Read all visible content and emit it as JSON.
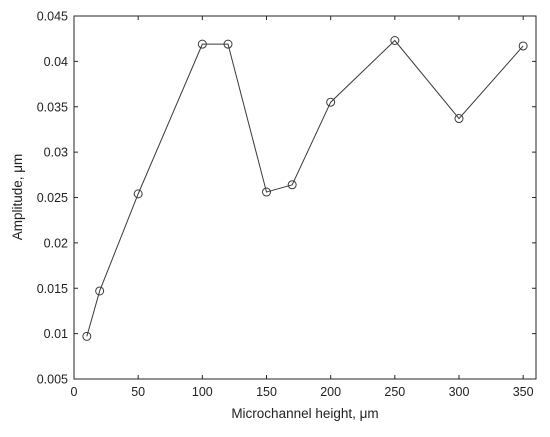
{
  "chart_data": {
    "type": "line",
    "title": "",
    "xlabel": "Microchannel height, μm",
    "ylabel": "Amplitude, μm",
    "xlim": [
      0,
      360
    ],
    "ylim": [
      0.005,
      0.045
    ],
    "xticks": [
      0,
      50,
      100,
      150,
      200,
      250,
      300,
      350
    ],
    "xtick_labels": [
      "0",
      "50",
      "100",
      "150",
      "200",
      "250",
      "300",
      "350"
    ],
    "yticks": [
      0.005,
      0.01,
      0.015,
      0.02,
      0.025,
      0.03,
      0.035,
      0.04,
      0.045
    ],
    "ytick_labels": [
      "0.005",
      "0.01",
      "0.015",
      "0.02",
      "0.025",
      "0.03",
      "0.035",
      "0.04",
      "0.045"
    ],
    "grid": false,
    "legend": "none",
    "marker": "circle-open",
    "line_color": "#3a3a3a",
    "series": [
      {
        "x": [
          10,
          20,
          50,
          100,
          120,
          150,
          170,
          200,
          250,
          300,
          350
        ],
        "y": [
          0.0097,
          0.0147,
          0.0254,
          0.0419,
          0.0419,
          0.0256,
          0.0264,
          0.0355,
          0.0423,
          0.0337,
          0.0417
        ]
      }
    ]
  }
}
